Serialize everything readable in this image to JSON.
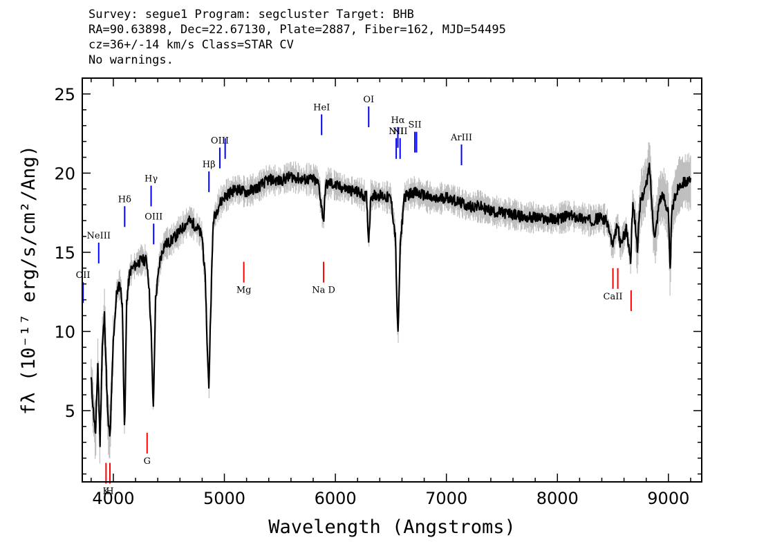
{
  "header": {
    "line1": "Survey: segue1 Program: segcluster Target: BHB",
    "line2": "RA=90.63898, Dec=22.67130, Plate=2887, Fiber=162, MJD=54495",
    "line3": "cz=36+/-14 km/s Class=STAR CV",
    "line4": "No warnings."
  },
  "chart_data": {
    "type": "line",
    "xlabel": "Wavelength (Angstroms)",
    "ylabel": "fλ (10⁻¹⁷ erg/s/cm²/Ang)",
    "xlim": [
      3720,
      9300
    ],
    "ylim": [
      0.5,
      26.0
    ],
    "x_ticks": [
      4000,
      5000,
      6000,
      7000,
      8000,
      9000
    ],
    "y_ticks": [
      5,
      10,
      15,
      20,
      25
    ],
    "grid": false,
    "series": [
      {
        "color": "#000000",
        "x": [
          3800,
          3820,
          3840,
          3860,
          3880,
          3900,
          3920,
          3950,
          3970,
          4000,
          4030,
          4060,
          4080,
          4102,
          4120,
          4150,
          4200,
          4250,
          4300,
          4320,
          4340,
          4360,
          4380,
          4420,
          4460,
          4500,
          4560,
          4620,
          4680,
          4720,
          4760,
          4800,
          4830,
          4850,
          4861,
          4875,
          4900,
          4950,
          5000,
          5100,
          5200,
          5300,
          5400,
          5500,
          5600,
          5700,
          5800,
          5850,
          5880,
          5895,
          5910,
          5950,
          6000,
          6100,
          6200,
          6280,
          6300,
          6320,
          6400,
          6500,
          6540,
          6563,
          6585,
          6620,
          6700,
          6800,
          6900,
          7000,
          7100,
          7200,
          7300,
          7400,
          7500,
          7600,
          7700,
          7800,
          7900,
          8000,
          8100,
          8200,
          8300,
          8400,
          8450,
          8500,
          8540,
          8570,
          8620,
          8660,
          8680,
          8720,
          8750,
          8800,
          8830,
          8860,
          8880,
          8920,
          8960,
          9000,
          9015,
          9030,
          9060,
          9100,
          9150,
          9200
        ],
        "y": [
          7,
          5,
          3.5,
          8,
          3,
          9,
          11,
          4.5,
          3.2,
          9.5,
          12.5,
          13,
          11.8,
          3.5,
          12,
          13.8,
          14.2,
          14.5,
          14.5,
          13,
          10,
          5,
          12,
          14.5,
          15.5,
          15.6,
          16,
          16.5,
          17,
          16.8,
          16.5,
          16,
          13,
          8,
          6.5,
          11,
          17,
          18,
          18.5,
          19,
          18.8,
          19.1,
          19.6,
          19.5,
          19.8,
          19.6,
          19.6,
          19.3,
          17.6,
          17,
          19.2,
          19.4,
          19.2,
          19,
          18.8,
          18.5,
          15.7,
          18.6,
          18.6,
          18.4,
          16,
          9.5,
          15.5,
          18.5,
          18.8,
          18.6,
          18.3,
          18.5,
          18.2,
          17.9,
          17.9,
          17.6,
          17.5,
          17.4,
          17.2,
          17.2,
          17.1,
          17.1,
          17.3,
          17.2,
          17,
          17.2,
          16.9,
          15.3,
          16.8,
          15.4,
          16.5,
          14.5,
          18.3,
          15.3,
          18.3,
          19.2,
          20.5,
          17,
          16,
          18.4,
          18.5,
          17.5,
          13.5,
          17.5,
          18.5,
          19.3,
          19.5,
          19.4
        ]
      }
    ],
    "lines_blue": [
      {
        "label": "OII",
        "x": 3727,
        "y": 11.8
      },
      {
        "label": "NeIII",
        "x": 3868,
        "y": 14.3
      },
      {
        "label": "Hδ",
        "x": 4102,
        "y": 16.6
      },
      {
        "label": "Hγ",
        "x": 4340,
        "y": 17.9
      },
      {
        "label": "OIII",
        "x": 4363,
        "y": 15.5
      },
      {
        "label": "Hβ",
        "x": 4861,
        "y": 18.8
      },
      {
        "label": "OIII",
        "x": 4959,
        "y": 20.3
      },
      {
        "label": "",
        "x": 5007,
        "y": 20.9
      },
      {
        "label": "HeI",
        "x": 5876,
        "y": 22.4
      },
      {
        "label": "OI",
        "x": 6300,
        "y": 22.9
      },
      {
        "label": "NII",
        "x": 6548,
        "y": 20.9
      },
      {
        "label": "Hα",
        "x": 6563,
        "y": 21.6
      },
      {
        "label": "NII",
        "x": 6583,
        "y": 20.9
      },
      {
        "label": "SII",
        "x": 6716,
        "y": 21.3
      },
      {
        "label": "",
        "x": 6731,
        "y": 21.3
      },
      {
        "label": "ArIII",
        "x": 7136,
        "y": 20.5
      }
    ],
    "lines_red": [
      {
        "label": "K",
        "x": 3934,
        "y": 1.7
      },
      {
        "label": "H",
        "x": 3969,
        "y": 1.7
      },
      {
        "label": "G",
        "x": 4304,
        "y": 3.6
      },
      {
        "label": "Mg",
        "x": 5175,
        "y": 14.4
      },
      {
        "label": "Na D",
        "x": 5894,
        "y": 14.4
      },
      {
        "label": "CaII",
        "x": 8500,
        "y": 14.0
      },
      {
        "label": "",
        "x": 8544,
        "y": 14.0
      },
      {
        "label": "",
        "x": 8664,
        "y": 12.6
      }
    ]
  },
  "colors": {
    "flux": "#000000",
    "error": "#bfbfbf",
    "emission": "#0000ff",
    "absorption": "#ff0000"
  }
}
